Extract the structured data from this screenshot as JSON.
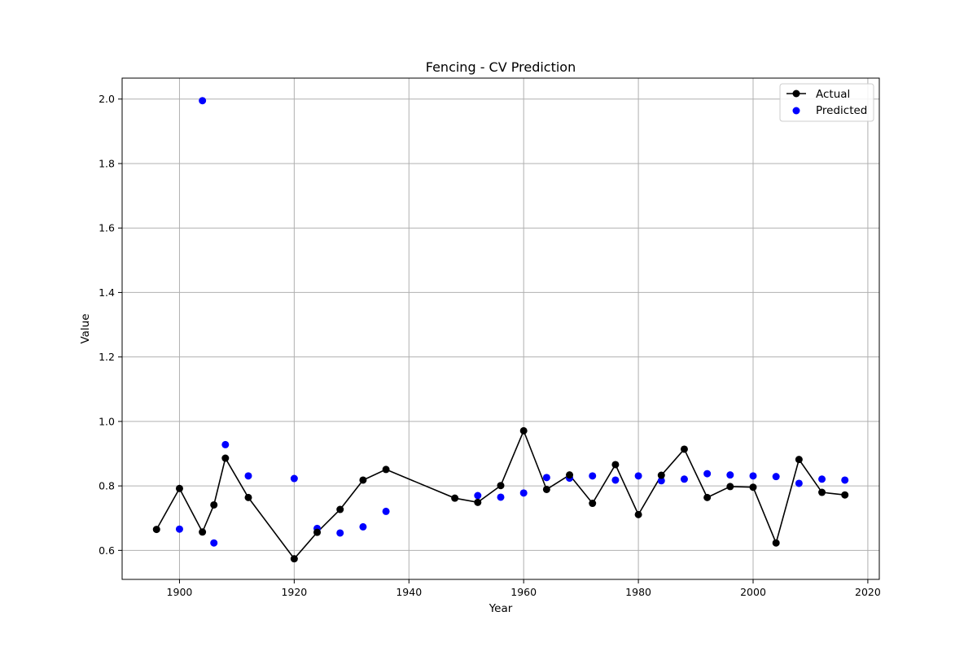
{
  "chart_data": {
    "type": "line",
    "title": "Fencing - CV Prediction",
    "xlabel": "Year",
    "ylabel": "Value",
    "xlim": [
      1890,
      2022
    ],
    "ylim": [
      0.51,
      2.065
    ],
    "xticks": [
      1900,
      1920,
      1940,
      1960,
      1980,
      2000,
      2020
    ],
    "yticks": [
      0.6,
      0.8,
      1.0,
      1.2,
      1.4,
      1.6,
      1.8,
      2.0
    ],
    "xtick_labels": [
      "1900",
      "1920",
      "1940",
      "1960",
      "1980",
      "2000",
      "2020"
    ],
    "ytick_labels": [
      "0.6",
      "0.8",
      "1.0",
      "1.2",
      "1.4",
      "1.6",
      "1.8",
      "2.0"
    ],
    "grid": true,
    "legend_position": "top-right",
    "series": [
      {
        "name": "Actual",
        "kind": "line-marker",
        "color": "#000000",
        "x": [
          1896,
          1900,
          1904,
          1906,
          1908,
          1912,
          1920,
          1924,
          1928,
          1932,
          1936,
          1948,
          1952,
          1956,
          1960,
          1964,
          1968,
          1972,
          1976,
          1980,
          1984,
          1988,
          1992,
          1996,
          2000,
          2004,
          2008,
          2012,
          2016
        ],
        "y": [
          0.665,
          0.792,
          0.657,
          0.741,
          0.886,
          0.764,
          0.574,
          0.656,
          0.727,
          0.818,
          0.851,
          0.762,
          0.749,
          0.801,
          0.971,
          0.789,
          0.834,
          0.746,
          0.866,
          0.711,
          0.833,
          0.914,
          0.764,
          0.798,
          0.796,
          0.623,
          0.882,
          0.78,
          0.772
        ]
      },
      {
        "name": "Predicted",
        "kind": "scatter",
        "color": "#0000ff",
        "x": [
          1900,
          1904,
          1906,
          1908,
          1912,
          1920,
          1924,
          1928,
          1932,
          1936,
          1952,
          1956,
          1960,
          1964,
          1968,
          1972,
          1976,
          1980,
          1984,
          1988,
          1992,
          1996,
          2000,
          2004,
          2008,
          2012,
          2016
        ],
        "y": [
          0.666,
          1.995,
          0.623,
          0.928,
          0.831,
          0.823,
          0.668,
          0.654,
          0.673,
          0.721,
          0.77,
          0.765,
          0.778,
          0.826,
          0.824,
          0.831,
          0.818,
          0.831,
          0.816,
          0.821,
          0.838,
          0.834,
          0.831,
          0.829,
          0.808,
          0.821,
          0.818
        ]
      }
    ]
  }
}
